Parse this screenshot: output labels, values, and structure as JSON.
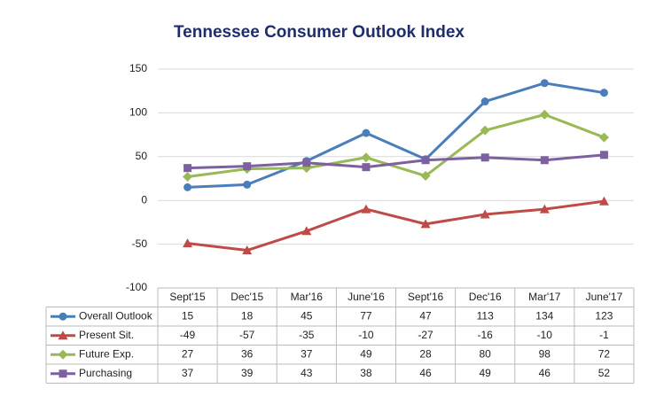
{
  "chart_data": {
    "type": "line",
    "title": "Tennessee Consumer Outlook Index",
    "categories": [
      "Sept'15",
      "Dec'15",
      "Mar'16",
      "June'16",
      "Sept'16",
      "Dec'16",
      "Mar'17",
      "June'17"
    ],
    "series": [
      {
        "name": "Overall Outlook",
        "color": "#4a7ebb",
        "marker": "circle",
        "values": [
          15,
          18,
          45,
          77,
          47,
          113,
          134,
          123
        ]
      },
      {
        "name": "Present Sit.",
        "color": "#be4b48",
        "marker": "triangle",
        "values": [
          -49,
          -57,
          -35,
          -10,
          -27,
          -16,
          -10,
          -1
        ]
      },
      {
        "name": "Future Exp.",
        "color": "#98b954",
        "marker": "diamond",
        "values": [
          27,
          36,
          37,
          49,
          28,
          80,
          98,
          72
        ]
      },
      {
        "name": "Purchasing",
        "color": "#7d60a0",
        "marker": "square",
        "values": [
          37,
          39,
          43,
          38,
          46,
          49,
          46,
          52
        ]
      }
    ],
    "ylim": [
      -100,
      150
    ],
    "yticks": [
      -100,
      -50,
      0,
      50,
      100,
      150
    ],
    "grid": true
  }
}
